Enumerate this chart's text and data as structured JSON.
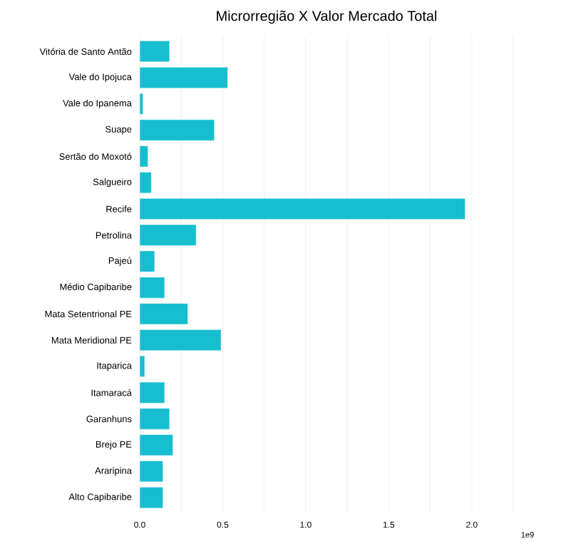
{
  "chart_data": {
    "type": "bar",
    "orientation": "horizontal",
    "title": "Microrregião X Valor Mercado Total",
    "categories": [
      "Vitória de Santo Antão",
      "Vale do Ipojuca",
      "Vale do Ipanema",
      "Suape",
      "Sertão do Moxotó",
      "Salgueiro",
      "Recife",
      "Petrolina",
      "Pajeú",
      "Médio Capibaribe",
      "Mata Setentrional PE",
      "Mata Meridional PE",
      "Itaparica",
      "Itamaracá",
      "Garanhuns",
      "Brejo PE",
      "Araripina",
      "Alto Capibaribe"
    ],
    "values": [
      0.18,
      0.53,
      0.02,
      0.45,
      0.05,
      0.07,
      1.96,
      0.34,
      0.09,
      0.15,
      0.29,
      0.49,
      0.03,
      0.15,
      0.18,
      0.2,
      0.14,
      0.14
    ],
    "color": "#17becf",
    "xlim": [
      0,
      2.25
    ],
    "xticks": [
      {
        "value": 0,
        "label": "0.0"
      },
      {
        "value": 0.25,
        "label": null
      },
      0.5,
      {
        "value": 0.75,
        "label": null
      },
      {
        "value": 1,
        "label": "1.0"
      },
      {
        "value": 1.25,
        "label": null
      },
      1.5,
      {
        "value": 1.75,
        "label": null
      },
      {
        "value": 2,
        "label": "2.0"
      },
      {
        "value": 2.25,
        "label": null
      }
    ],
    "grid": "x",
    "annotations": [
      "1e9"
    ]
  }
}
